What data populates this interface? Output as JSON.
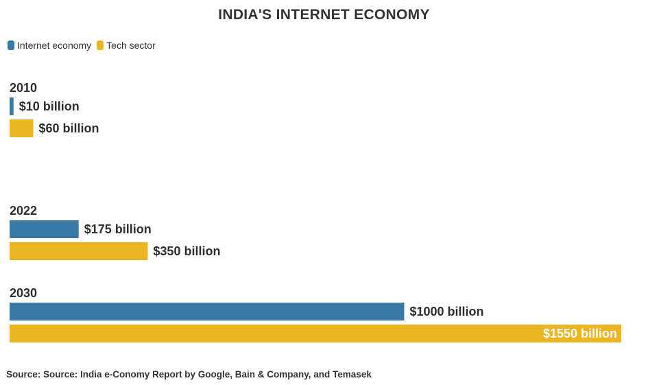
{
  "title": "INDIA'S INTERNET ECONOMY",
  "legend": [
    {
      "label": "Internet economy",
      "color": "#3a78a6"
    },
    {
      "label": "Tech sector",
      "color": "#ecb421"
    }
  ],
  "source": "Source: Source: India e-Conomy Report by Google, Bain & Company, and Temasek",
  "chart_data": {
    "type": "bar",
    "orientation": "horizontal",
    "title": "INDIA'S INTERNET ECONOMY",
    "xlabel": "",
    "ylabel": "",
    "unit": "billion USD",
    "xlim": [
      0,
      1550
    ],
    "grid": false,
    "legend_position": "top-left",
    "categories": [
      "2010",
      "2022",
      "2030"
    ],
    "series": [
      {
        "name": "Internet economy",
        "color": "#3a78a6",
        "values": [
          10,
          175,
          1000
        ],
        "labels": [
          "$10 billion",
          "$175 billion",
          "$1000 billion"
        ]
      },
      {
        "name": "Tech sector",
        "color": "#ecb421",
        "values": [
          60,
          350,
          1550
        ],
        "labels": [
          "$60 billion",
          "$350 billion",
          "$1550 billion"
        ]
      }
    ]
  }
}
